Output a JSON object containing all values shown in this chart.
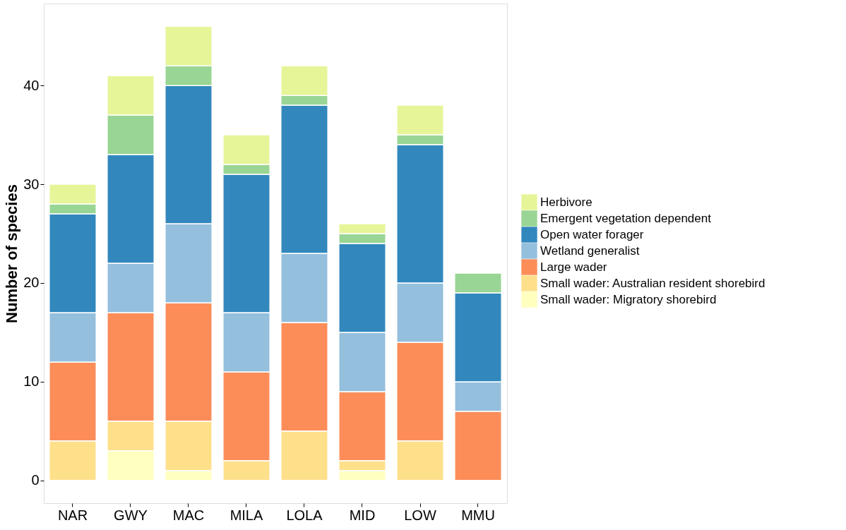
{
  "chart_data": {
    "type": "bar",
    "stacked": true,
    "ylabel": "Number of species",
    "categories": [
      "NAR",
      "GWY",
      "MAC",
      "MILA",
      "LOLA",
      "MID",
      "LOW",
      "MMU"
    ],
    "series": [
      {
        "name": "Small wader: Migratory shorebird",
        "color": "#ffffbf",
        "values": [
          0,
          3,
          1,
          0,
          0,
          1,
          0,
          0
        ]
      },
      {
        "name": "Small wader: Australian resident shorebird",
        "color": "#fee08b",
        "values": [
          4,
          3,
          5,
          2,
          5,
          1,
          4,
          0
        ]
      },
      {
        "name": "Large wader",
        "color": "#fc8d59",
        "values": [
          8,
          11,
          12,
          9,
          11,
          7,
          10,
          7
        ]
      },
      {
        "name": "Wetland generalist",
        "color": "#94bfdd",
        "values": [
          5,
          5,
          8,
          6,
          7,
          6,
          6,
          3
        ]
      },
      {
        "name": "Open water forager",
        "color": "#3288bd",
        "values": [
          10,
          11,
          14,
          14,
          15,
          9,
          14,
          9
        ]
      },
      {
        "name": "Emergent vegetation dependent",
        "color": "#99d594",
        "values": [
          1,
          4,
          2,
          1,
          1,
          1,
          1,
          2
        ]
      },
      {
        "name": "Herbivore",
        "color": "#e6f598",
        "values": [
          2,
          4,
          4,
          3,
          3,
          1,
          3,
          0
        ]
      }
    ],
    "ylim": [
      -2.3,
      48.3
    ],
    "yticks": [
      0,
      10,
      20,
      30,
      40
    ],
    "grid": false,
    "legend": "right"
  }
}
